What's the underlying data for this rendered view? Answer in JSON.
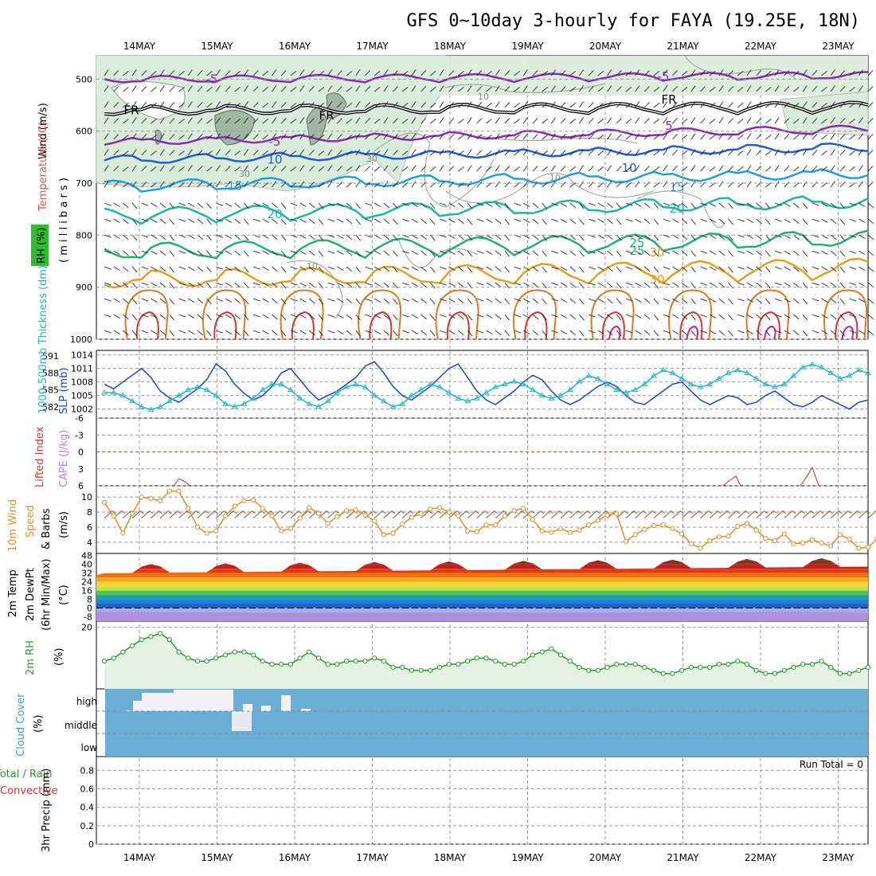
{
  "title": "GFS 0~10day 3-hourly for FAYA (19.25E, 18N)",
  "dates": [
    "14MAY",
    "15MAY",
    "16MAY",
    "17MAY",
    "18MAY",
    "19MAY",
    "20MAY",
    "21MAY",
    "22MAY",
    "23MAY"
  ],
  "colors": {
    "grid": "#999999",
    "rh_fill": "#d9ecd9",
    "rh_dark": "#9fb89f",
    "cloud": "#6aaed6",
    "cloud_white": "#f4f0f8",
    "slp": "#1f3fd6",
    "thickness": "#1fb8c8",
    "lifted": "#e03030",
    "wind_speed": "#e0902a",
    "rh2m": "#2a9a2a"
  },
  "panels": {
    "upper_air": {
      "ylabel_wind": "Wind (m/s)",
      "ylabel_temp": "Temperature (°C)",
      "ylabel_rh": "RH (%)",
      "ylabel_unit": "( m i l l i b a r s )",
      "ticks": [
        "500",
        "600",
        "700",
        "800",
        "900",
        "1000"
      ],
      "contours": [
        {
          "label": "-5",
          "color": "#8a2ab0"
        },
        {
          "label": "FR",
          "color": "#000000"
        },
        {
          "label": "-5",
          "color": "#8a2ab0"
        },
        {
          "label": "5",
          "color": "#8a2ab0"
        },
        {
          "label": "10",
          "color": "#1f5ad6"
        },
        {
          "label": "15",
          "color": "#1e9ee0"
        },
        {
          "label": "20",
          "color": "#18b8a0"
        },
        {
          "label": "25",
          "color": "#22b070"
        },
        {
          "label": "30",
          "color": "#e0a020"
        }
      ],
      "rh_labels": [
        "30",
        "30",
        "10",
        "10",
        "10"
      ]
    },
    "slp_thickness": {
      "ylabel_left": "1000-500mb Thickness (dm)",
      "ylabel_right": "SLP (mb)",
      "left_ticks": [
        "591",
        "588",
        "585",
        "582"
      ],
      "right_ticks": [
        "1014",
        "1011",
        "1008",
        "1005",
        "1002"
      ],
      "slp_values": [
        1007.5,
        1006.5,
        1008,
        1009.5,
        1011,
        1009,
        1006,
        1004.5,
        1003.5,
        1005,
        1006.5,
        1008.5,
        1012,
        1010.5,
        1007.5,
        1005.5,
        1004,
        1005,
        1007,
        1010,
        1011,
        1008.5,
        1006,
        1004,
        1005,
        1006,
        1007.5,
        1009,
        1011.5,
        1012.5,
        1010,
        1007,
        1005,
        1004,
        1005.5,
        1007,
        1009,
        1011,
        1012,
        1009,
        1006,
        1004,
        1003,
        1004.5,
        1006,
        1008,
        1009.5,
        1008.5,
        1006,
        1004,
        1003,
        1004,
        1005.5,
        1007,
        1008,
        1007,
        1005,
        1003.5,
        1003,
        1004.5,
        1006,
        1007.5,
        1008,
        1006,
        1004,
        1003,
        1004,
        1005,
        1004.5,
        1003,
        1003.5,
        1005,
        1006,
        1004.5,
        1003,
        1002.5,
        1003.5,
        1005,
        1004,
        1003,
        1002,
        1003.5,
        1004
      ],
      "thickness_values": [
        584.5,
        584.5,
        584,
        583,
        582,
        581.5,
        582,
        583,
        584,
        585,
        585.5,
        585,
        584,
        582.5,
        582,
        582.5,
        583.5,
        585,
        586,
        586,
        585,
        583.5,
        582.5,
        582,
        583,
        584.5,
        585.5,
        586,
        585.5,
        584,
        583,
        582,
        582.5,
        584,
        585,
        586,
        585.5,
        584.5,
        583.5,
        583,
        583.5,
        584.5,
        585.5,
        586,
        586.5,
        586,
        585,
        584,
        583.5,
        584,
        585,
        586.5,
        587.5,
        587,
        586,
        585,
        584.5,
        585,
        586,
        587.5,
        588.5,
        588,
        587,
        586,
        585.5,
        586,
        587,
        588,
        588.5,
        588,
        587,
        586,
        585.5,
        586,
        587.5,
        589,
        589.5,
        589,
        588,
        587,
        587.5,
        588.5,
        588
      ]
    },
    "cape_li": {
      "ylabel_left": "Lifted Index",
      "ylabel_right": "CAPE (J/kg)",
      "ticks": [
        "6",
        "3",
        "0",
        "-3",
        "-6"
      ]
    },
    "wind10m": {
      "ylabel_left": "10m Wind",
      "ylabel_mid": "Speed",
      "ylabel_right": "& Barbs",
      "unit": "(m/s)",
      "ticks": [
        "10",
        "8",
        "6",
        "4"
      ],
      "speed_values": [
        9.3,
        7.5,
        5.2,
        7.8,
        10,
        9.8,
        9.5,
        10.8,
        10.8,
        8.5,
        6,
        5.2,
        5.5,
        7.5,
        8.8,
        9.5,
        9.6,
        8.5,
        7.5,
        5.5,
        5.8,
        7.2,
        8.6,
        7.8,
        6.5,
        7.4,
        8.2,
        8.3,
        7.6,
        6.8,
        5,
        5.2,
        6.4,
        7.3,
        7.8,
        8.4,
        8.6,
        8,
        7.5,
        5.5,
        5.4,
        6.3,
        6.3,
        7.5,
        8.2,
        8.5,
        7,
        5.5,
        5.3,
        5.8,
        5.3,
        5.6,
        6.3,
        6.9,
        7.6,
        7.8,
        4.1,
        5,
        5.7,
        6.2,
        6.3,
        5.8,
        5.1,
        3.8,
        3.2,
        4.2,
        4.7,
        4.8,
        6.1,
        6.5,
        5.6,
        4.5,
        4.2,
        5.1,
        3.8,
        3.9,
        4.3,
        3.9,
        3.5,
        5,
        4.4,
        3.2,
        3.3,
        4.5,
        4.3
      ]
    },
    "temp2m": {
      "ylabel_left": "2m Temp",
      "ylabel_mid": "2m DewPt",
      "ylabel_right": "(6hr Min/Max)",
      "unit": "(°C)",
      "ticks": [
        "48",
        "40",
        "32",
        "24",
        "16",
        "8",
        "0",
        "-8"
      ]
    },
    "rh2m": {
      "ylabel_left": "2m RH",
      "unit": "(%)",
      "ticks": [
        "20"
      ],
      "values": [
        9,
        10,
        12,
        14,
        16,
        17,
        18,
        16,
        12,
        10,
        9,
        9,
        10,
        11,
        12,
        12,
        11,
        9,
        8,
        8,
        8,
        10,
        12,
        10,
        8,
        8,
        9,
        9,
        9,
        10,
        9,
        7,
        7,
        6,
        6,
        6,
        7,
        8,
        8,
        9,
        10,
        10,
        9,
        8,
        8,
        9,
        11,
        12,
        13,
        11,
        9,
        7,
        6,
        6,
        7,
        8,
        8,
        8,
        7,
        6,
        5,
        5,
        6,
        7,
        7,
        7,
        8,
        8,
        9,
        8,
        6,
        5,
        5,
        6,
        7,
        8,
        8,
        9,
        7,
        5,
        5,
        6,
        7,
        8,
        10,
        9,
        8
      ]
    },
    "cloud": {
      "ylabel": "Cloud Cover",
      "unit": "(%)",
      "levels": [
        "high",
        "middle",
        "low"
      ]
    },
    "precip": {
      "ylabel_left": "Total / Rain",
      "ylabel_right": "Convective",
      "ylabel_mid": "3hr Precip (mm)",
      "ticks": [
        "0.8",
        "0.6",
        "0.4",
        "0.2",
        "0"
      ],
      "run_total": "Run Total = 0"
    }
  }
}
